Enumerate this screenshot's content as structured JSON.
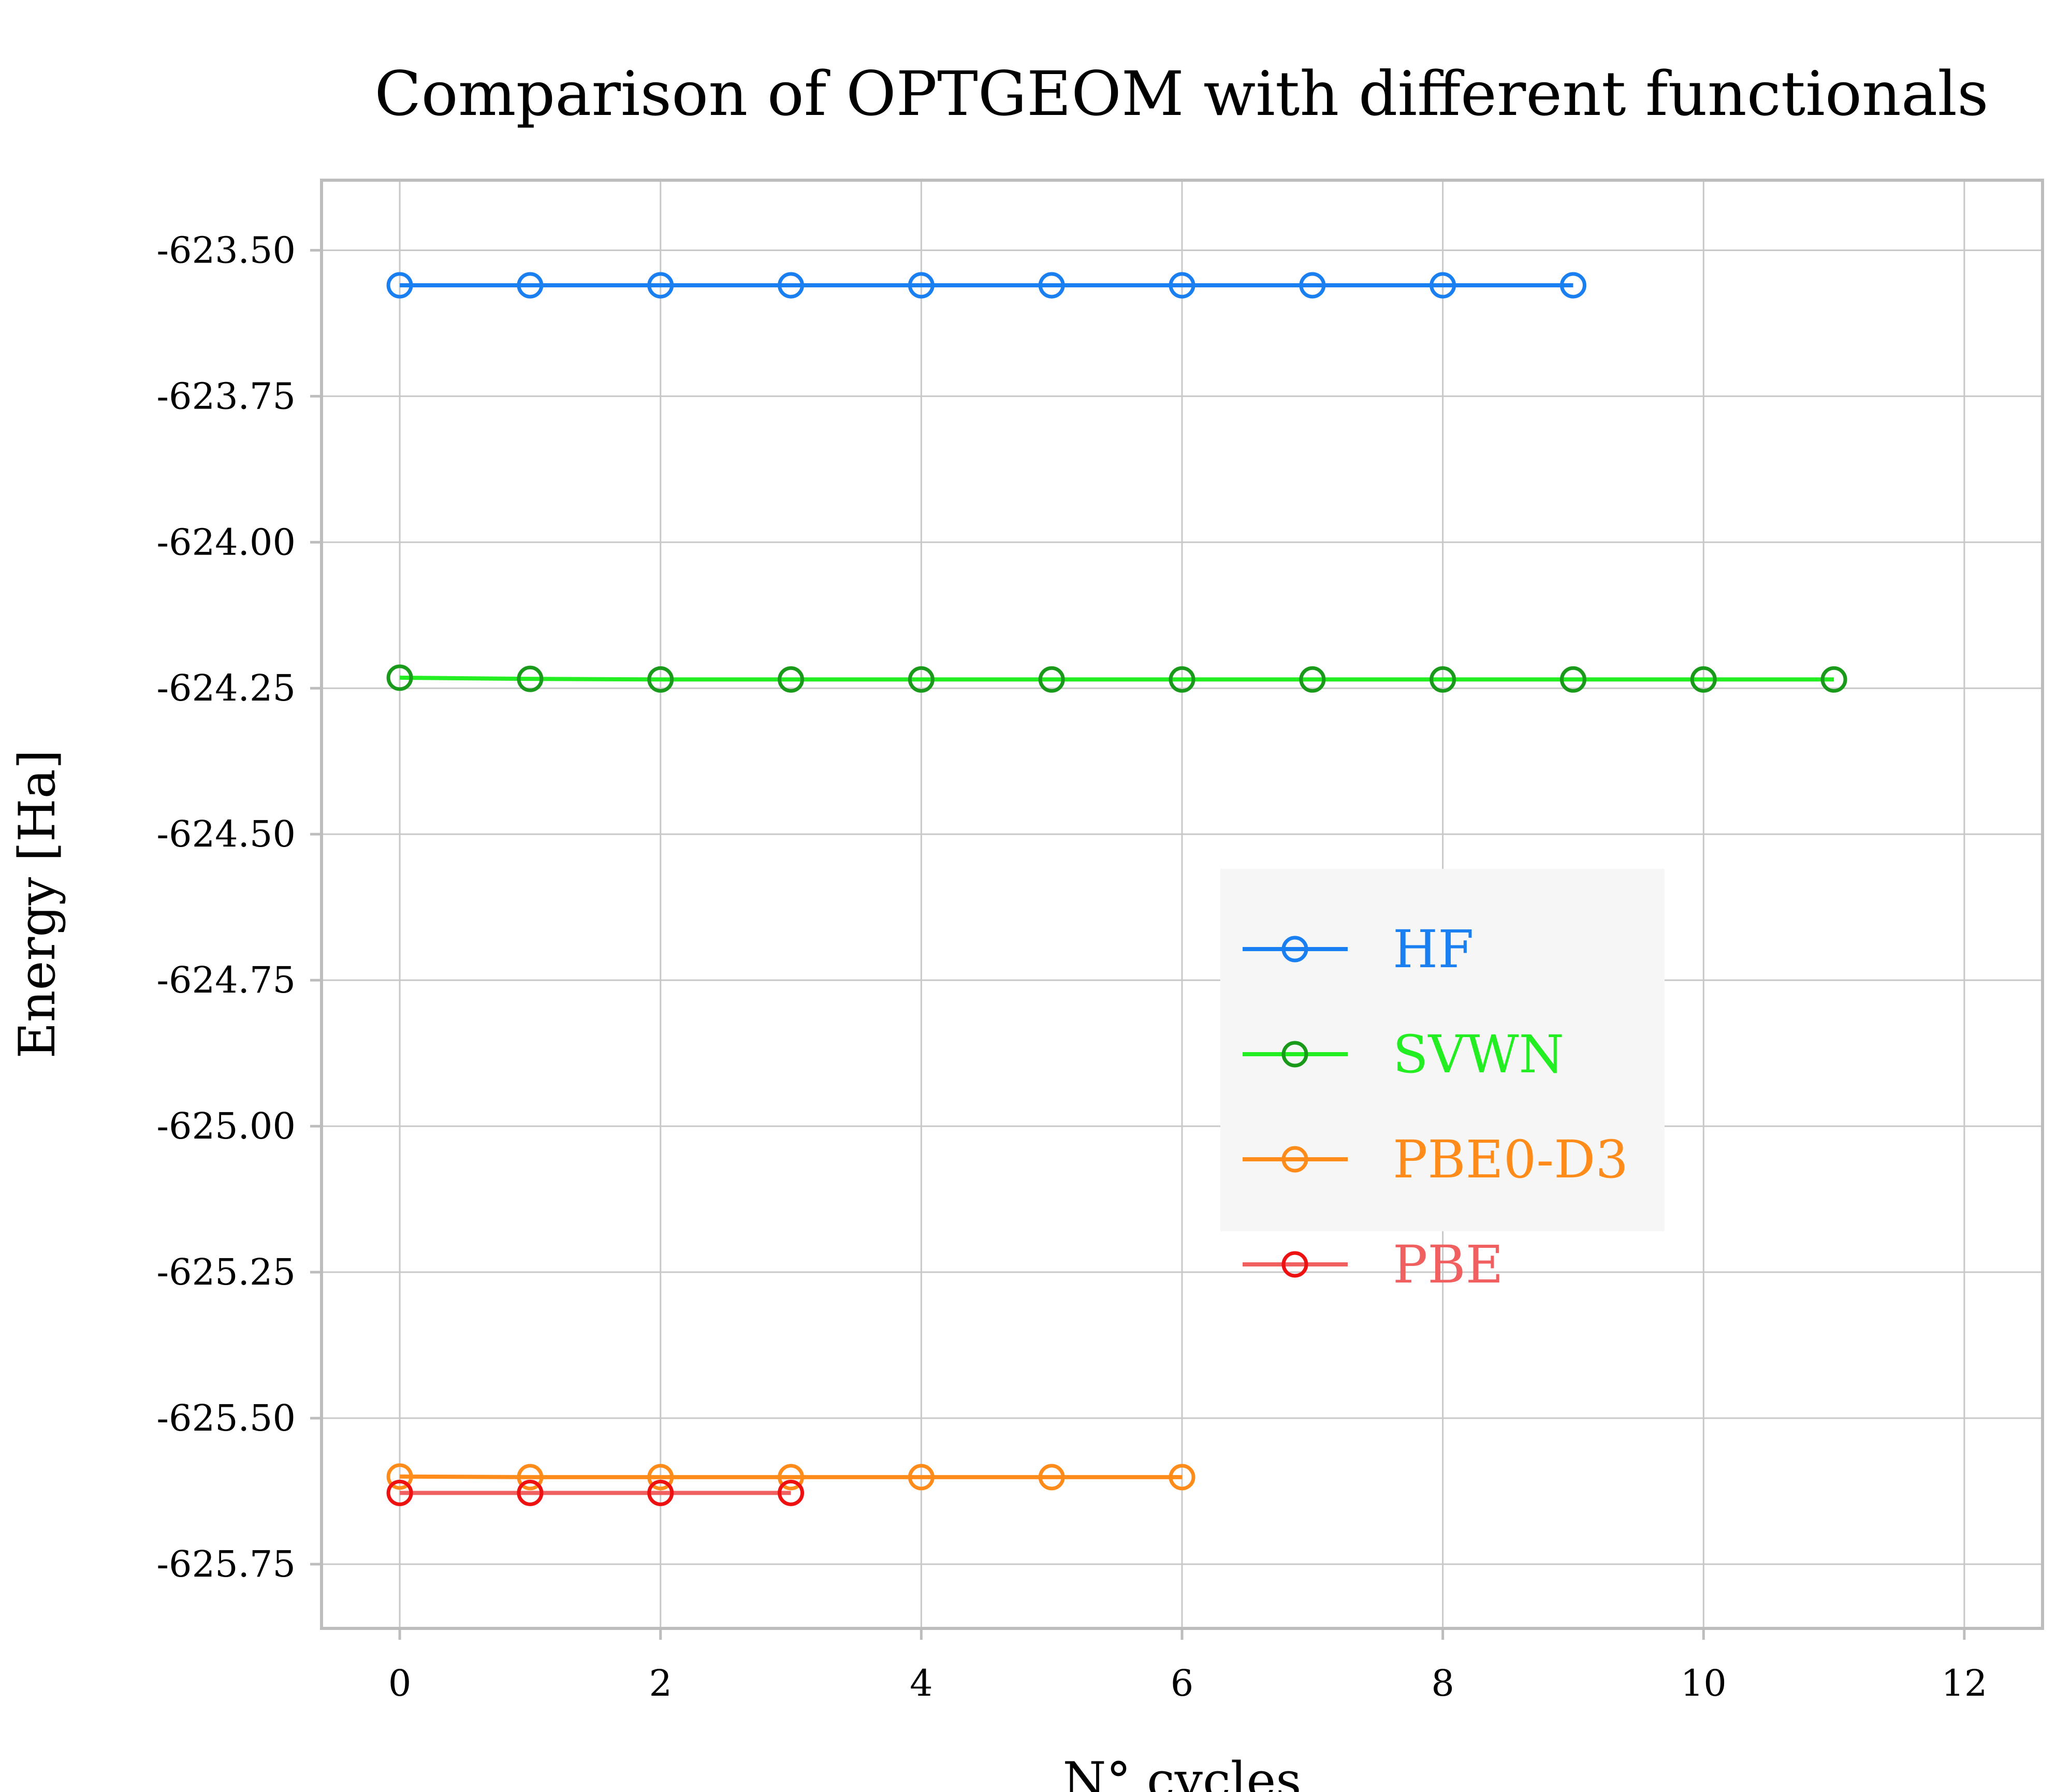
{
  "chart_data": {
    "type": "line",
    "title": "Comparison of OPTGEOM with different functionals",
    "xlabel": "N° cycles",
    "ylabel": "Energy [Ha]",
    "xlim": [
      -0.6,
      12.6
    ],
    "ylim": [
      -625.86,
      -623.38
    ],
    "xticks": [
      0,
      2,
      4,
      6,
      8,
      10,
      12
    ],
    "xtick_labels": [
      "0",
      "2",
      "4",
      "6",
      "8",
      "10",
      "12"
    ],
    "yticks": [
      -623.5,
      -623.75,
      -624.0,
      -624.25,
      -624.5,
      -624.75,
      -625.0,
      -625.25,
      -625.5,
      -625.75
    ],
    "ytick_labels": [
      "-623.50",
      "-623.75",
      "-624.00",
      "-624.25",
      "-624.50",
      "-624.75",
      "-625.00",
      "-625.25",
      "-625.50",
      "-625.75"
    ],
    "grid": true,
    "legend_position": "center-right",
    "series": [
      {
        "name": "HF",
        "line_color": "#1a7ff0",
        "marker_color": "#1a7ff0",
        "label_color": "#1a7ff0",
        "marker": "open-circle",
        "x": [
          0,
          1,
          2,
          3,
          4,
          5,
          6,
          7,
          8,
          9
        ],
        "y": [
          -623.56,
          -623.56,
          -623.56,
          -623.56,
          -623.56,
          -623.56,
          -623.56,
          -623.56,
          -623.56,
          -623.56
        ]
      },
      {
        "name": "SVWN",
        "line_color": "#22ee22",
        "marker_color": "#1a9a1a",
        "label_color": "#22ee22",
        "marker": "open-circle",
        "x": [
          0,
          1,
          2,
          3,
          4,
          5,
          6,
          7,
          8,
          9,
          10,
          11
        ],
        "y": [
          -624.232,
          -624.234,
          -624.235,
          -624.235,
          -624.235,
          -624.235,
          -624.235,
          -624.235,
          -624.235,
          -624.235,
          -624.235,
          -624.235
        ]
      },
      {
        "name": "PBE0-D3",
        "line_color": "#ff8c1a",
        "marker_color": "#ff8c1a",
        "label_color": "#ff8c1a",
        "marker": "open-circle",
        "x": [
          0,
          1,
          2,
          3,
          4,
          5,
          6
        ],
        "y": [
          -625.6,
          -625.601,
          -625.601,
          -625.601,
          -625.601,
          -625.601,
          -625.601
        ]
      },
      {
        "name": "PBE",
        "line_color": "#f06060",
        "marker_color": "#ee1111",
        "label_color": "#f06060",
        "marker": "open-circle",
        "x": [
          0,
          1,
          2,
          3
        ],
        "y": [
          -625.628,
          -625.628,
          -625.628,
          -625.628
        ]
      }
    ]
  }
}
